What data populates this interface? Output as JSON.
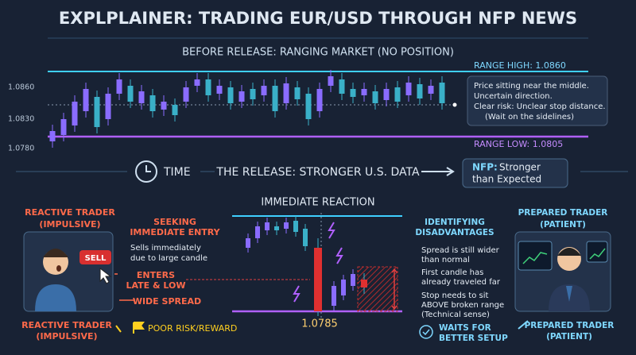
{
  "title": "EXPLPLAINER: TRADING EUR/USD THROUGH NFP NEWS",
  "before": {
    "heading": "BEFORE RELEASE: RANGING MARKET (NO POSITION)",
    "range_high": "RANGE HIGH: 1.0860",
    "range_low": "RANGE LOW: 1.0805",
    "axis_labels": [
      "1.0860",
      "1.0830",
      "1.0780"
    ],
    "note": [
      "Price sitting near the middle.",
      "Uncertain direction.",
      "Clear risk: Unclear stop distance.",
      "(Wait on the sidelines)"
    ]
  },
  "release": {
    "time": "TIME",
    "heading": "THE RELEASE: STRONGER U.S. DATA",
    "nfp_label": "NFP:",
    "nfp_text": [
      "Stronger",
      "than Expected"
    ]
  },
  "reaction": {
    "heading": "IMMEDIATE REACTION",
    "low_price": "1.0785"
  },
  "reactive": {
    "title": [
      "REACTIVE TRADER",
      "(IMPULSIVE)"
    ],
    "button": "SELL",
    "seeking": [
      "SEEKING",
      "IMMEDIATE ENTRY"
    ],
    "sells": [
      "Sells immediately",
      "due to large candle"
    ],
    "enters": [
      "ENTERS",
      "LATE & LOW"
    ],
    "spread": "WIDE SPREAD",
    "footer": [
      "REACTIVE TRADER",
      "(IMPULSIVE)"
    ],
    "warning": "POOR RISK/REWARD"
  },
  "prepared": {
    "title": [
      "PREPARED TRADER",
      "(PATIENT)"
    ],
    "identifying": [
      "IDENTIFYING",
      "DISADVANTAGES"
    ],
    "points": [
      [
        "Spread is still wider",
        "than normal"
      ],
      [
        "First candle has",
        "already traveled far"
      ],
      [
        "Stop needs to sit",
        "ABOVE broken range",
        "(Technical sense)"
      ]
    ],
    "waits": [
      "WAITS FOR",
      "BETTER SETUP"
    ],
    "footer": [
      "PREPARED TRADER",
      "(PATIENT)"
    ]
  }
}
